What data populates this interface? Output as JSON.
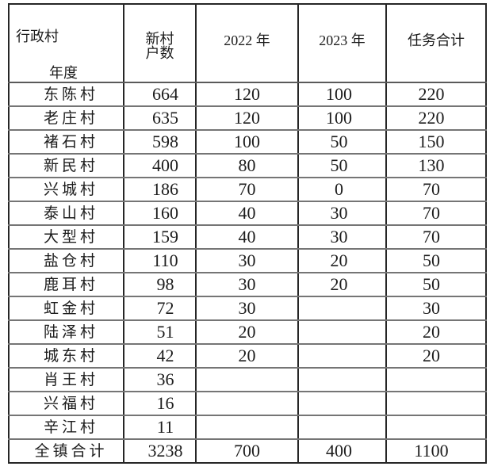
{
  "table": {
    "header": {
      "axis_col": "行政村",
      "axis_row": "年度",
      "col_households_line1": "新村",
      "col_households_line2": "户数",
      "col_2022": "2022 年",
      "col_2023": "2023 年",
      "col_total": "任务合计"
    },
    "rows": [
      [
        "东陈村",
        "664",
        "120",
        "100",
        "220"
      ],
      [
        "老庄村",
        "635",
        "120",
        "100",
        "220"
      ],
      [
        "褚石村",
        "598",
        "100",
        "50",
        "150"
      ],
      [
        "新民村",
        "400",
        "80",
        "50",
        "130"
      ],
      [
        "兴城村",
        "186",
        "70",
        "0",
        "70"
      ],
      [
        "泰山村",
        "160",
        "40",
        "30",
        "70"
      ],
      [
        "大型村",
        "159",
        "40",
        "30",
        "70"
      ],
      [
        "盐仓村",
        "110",
        "30",
        "20",
        "50"
      ],
      [
        "鹿耳村",
        "98",
        "30",
        "20",
        "50"
      ],
      [
        "虹金村",
        "72",
        "30",
        "",
        "30"
      ],
      [
        "陆泽村",
        "51",
        "20",
        "",
        "20"
      ],
      [
        "城东村",
        "42",
        "20",
        "",
        "20"
      ],
      [
        "肖王村",
        "36",
        "",
        "",
        ""
      ],
      [
        "兴福村",
        "16",
        "",
        "",
        ""
      ],
      [
        "辛江村",
        "11",
        "",
        "",
        ""
      ]
    ],
    "footer": [
      "全镇合计",
      "3238",
      "700",
      "400",
      "1100"
    ]
  }
}
